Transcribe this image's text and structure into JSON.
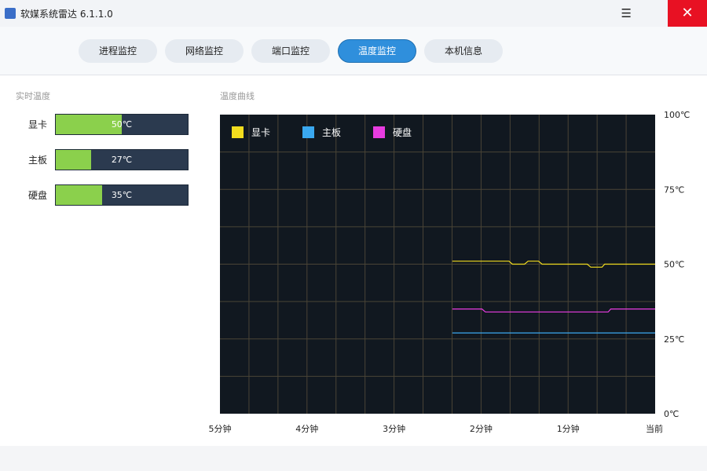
{
  "window": {
    "title": "软媒系统雷达 6.1.1.0",
    "menu_icon": "hamburger-icon",
    "close_icon": "close-icon"
  },
  "tabs": [
    {
      "label": "进程监控"
    },
    {
      "label": "网络监控"
    },
    {
      "label": "端口监控"
    },
    {
      "label": "温度监控",
      "active": true
    },
    {
      "label": "本机信息"
    }
  ],
  "realtime": {
    "title": "实时温度",
    "items": [
      {
        "label": "显卡",
        "value": "50℃",
        "percent": 50
      },
      {
        "label": "主板",
        "value": "27℃",
        "percent": 27
      },
      {
        "label": "硬盘",
        "value": "35℃",
        "percent": 35
      }
    ]
  },
  "chart_data": {
    "type": "line",
    "title": "温度曲线",
    "xlabel": "",
    "ylabel": "",
    "x_unit": "minutes ago",
    "xlim": [
      5,
      0
    ],
    "x_ticks": [
      {
        "value": 5,
        "label": "5分钟"
      },
      {
        "value": 4,
        "label": "4分钟"
      },
      {
        "value": 3,
        "label": "3分钟"
      },
      {
        "value": 2,
        "label": "2分钟"
      },
      {
        "value": 1,
        "label": "1分钟"
      },
      {
        "value": 0,
        "label": "当前"
      }
    ],
    "ylim": [
      0,
      100
    ],
    "y_ticks": [
      {
        "value": 100,
        "label": "100℃"
      },
      {
        "value": 75,
        "label": "75℃"
      },
      {
        "value": 50,
        "label": "50℃"
      },
      {
        "value": 25,
        "label": "25℃"
      },
      {
        "value": 0,
        "label": "0℃"
      }
    ],
    "grid": true,
    "legend_position": "top-left",
    "background": "#111820",
    "grid_color": "#4a4436",
    "series": [
      {
        "name": "显卡",
        "color": "#f2dc1e",
        "x": [
          2.33,
          1.68,
          1.64,
          1.5,
          1.46,
          1.34,
          1.3,
          0.78,
          0.74,
          0.61,
          0.58,
          0
        ],
        "y": [
          51,
          51,
          50,
          50,
          51,
          51,
          50,
          50,
          49,
          49,
          50,
          50
        ]
      },
      {
        "name": "主板",
        "color": "#3aa8f0",
        "x": [
          2.33,
          0
        ],
        "y": [
          27,
          27
        ]
      },
      {
        "name": "硬盘",
        "color": "#e83ce0",
        "x": [
          2.33,
          1.99,
          1.95,
          0.54,
          0.51,
          0
        ],
        "y": [
          35,
          35,
          34,
          34,
          35,
          35
        ]
      }
    ]
  }
}
